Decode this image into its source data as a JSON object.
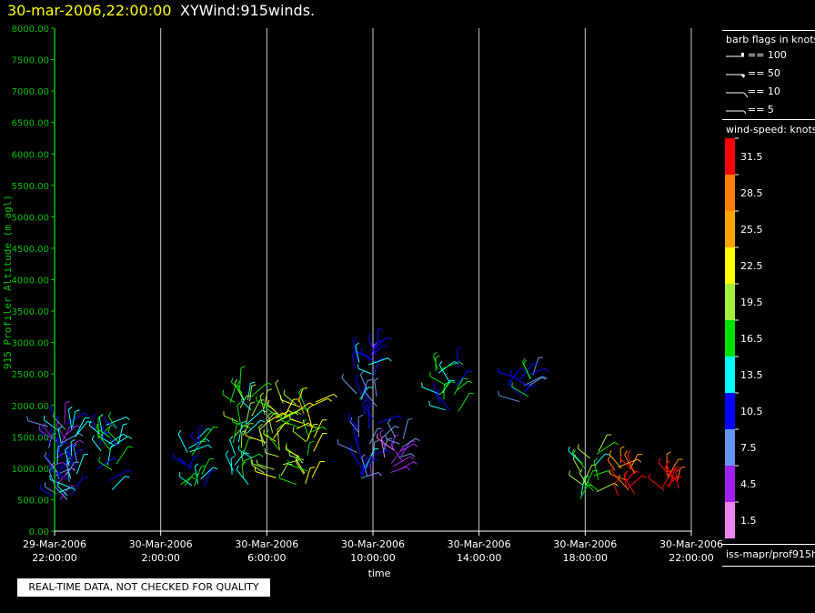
{
  "header": {
    "date_label": "30-mar-2006,22:00:00",
    "product_label": "XYWind:915winds."
  },
  "footer": {
    "disclaimer": "REAL-TIME DATA, NOT CHECKED FOR QUALITY",
    "source": "iss-mapr/prof915h"
  },
  "legend": {
    "barb_title": "barb flags in knots",
    "barb_items": [
      {
        "label": "== 100",
        "icon": "barb-100-icon"
      },
      {
        "label": "== 50",
        "icon": "barb-50-icon"
      },
      {
        "label": "== 10",
        "icon": "barb-10-icon"
      },
      {
        "label": "== 5",
        "icon": "barb-5-icon"
      }
    ],
    "speed_title": "wind-speed: knots",
    "speed_bins": [
      {
        "label": "31.5",
        "color": "#ff0000"
      },
      {
        "label": "28.5",
        "color": "#ff7f00"
      },
      {
        "label": "25.5",
        "color": "#ffa500"
      },
      {
        "label": "22.5",
        "color": "#ffff00"
      },
      {
        "label": "19.5",
        "color": "#a0f03c"
      },
      {
        "label": "16.5",
        "color": "#00e000"
      },
      {
        "label": "13.5",
        "color": "#00ffff"
      },
      {
        "label": "10.5",
        "color": "#0000ff"
      },
      {
        "label": "7.5",
        "color": "#6495ed"
      },
      {
        "label": "4.5",
        "color": "#a020f0"
      },
      {
        "label": "1.5",
        "color": "#ee82ee"
      }
    ]
  },
  "colors": {
    "background": "#000000",
    "axis": "#00c000",
    "grid": "#c8c8c8",
    "title_date": "#ffff00"
  },
  "chart_data": {
    "type": "scatter",
    "title": "XYWind:915winds.",
    "xlabel": "time",
    "ylabel": "915 Profiler Altitude (m agl)",
    "ylim": [
      0,
      8000
    ],
    "xlim": [
      0,
      24
    ],
    "x_ticks": [
      {
        "x": 0,
        "line1": "29-Mar-2006",
        "line2": "22:00:00"
      },
      {
        "x": 4,
        "line1": "30-Mar-2006",
        "line2": "2:00:00"
      },
      {
        "x": 8,
        "line1": "30-Mar-2006",
        "line2": "6:00:00"
      },
      {
        "x": 12,
        "line1": "30-Mar-2006",
        "line2": "10:00:00"
      },
      {
        "x": 16,
        "line1": "30-Mar-2006",
        "line2": "14:00:00"
      },
      {
        "x": 20,
        "line1": "30-Mar-2006",
        "line2": "18:00:00"
      },
      {
        "x": 24,
        "line1": "30-Mar-2006",
        "line2": "22:00:00"
      }
    ],
    "y_ticks": [
      "0.00",
      "500.00",
      "1000.00",
      "1500.00",
      "2000.00",
      "2500.00",
      "3000.00",
      "3500.00",
      "4000.00",
      "4500.00",
      "5000.00",
      "5500.00",
      "6000.00",
      "6500.00",
      "7000.00",
      "7500.00",
      "8000.00"
    ],
    "grid": "vertical",
    "legend_position": "right",
    "clusters": [
      {
        "t": 0.1,
        "alt_min": 500,
        "alt_max": 1800,
        "speed": 8
      },
      {
        "t": 0.4,
        "alt_min": 550,
        "alt_max": 1700,
        "speed": 11
      },
      {
        "t": 2.0,
        "alt_min": 600,
        "alt_max": 1700,
        "speed": 13
      },
      {
        "t": 5.2,
        "alt_min": 700,
        "alt_max": 1500,
        "speed": 13
      },
      {
        "t": 7.0,
        "alt_min": 700,
        "alt_max": 2300,
        "speed": 17
      },
      {
        "t": 8.3,
        "alt_min": 800,
        "alt_max": 2200,
        "speed": 20
      },
      {
        "t": 9.5,
        "alt_min": 700,
        "alt_max": 2100,
        "speed": 21
      },
      {
        "t": 11.8,
        "alt_min": 800,
        "alt_max": 3000,
        "speed": 9
      },
      {
        "t": 12.7,
        "alt_min": 900,
        "alt_max": 1600,
        "speed": 6
      },
      {
        "t": 14.8,
        "alt_min": 1900,
        "alt_max": 2600,
        "speed": 14
      },
      {
        "t": 17.6,
        "alt_min": 2000,
        "alt_max": 2500,
        "speed": 12
      },
      {
        "t": 20.2,
        "alt_min": 500,
        "alt_max": 1300,
        "speed": 18
      },
      {
        "t": 21.5,
        "alt_min": 500,
        "alt_max": 1100,
        "speed": 29
      },
      {
        "t": 23.2,
        "alt_min": 600,
        "alt_max": 900,
        "speed": 30
      }
    ]
  }
}
